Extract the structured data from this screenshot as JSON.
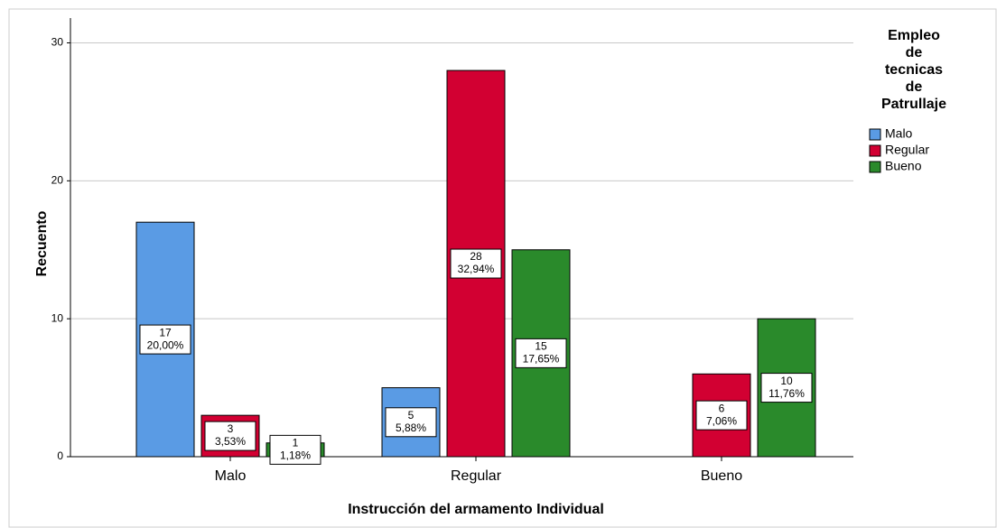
{
  "chart_data": {
    "type": "bar",
    "x_label": "Instrucción del armamento Individual",
    "y_label": "Recuento",
    "legend_title": "Empleo de tecnicas de Patrullaje",
    "legend_position": "right",
    "categories": [
      "Malo",
      "Regular",
      "Bueno"
    ],
    "series": [
      {
        "name": "Malo",
        "color": "#5a9be4",
        "values": [
          17,
          5,
          null
        ],
        "percent_labels": [
          "20,00%",
          "5,88%",
          null
        ]
      },
      {
        "name": "Regular",
        "color": "#d20032",
        "values": [
          3,
          28,
          6
        ],
        "percent_labels": [
          "3,53%",
          "32,94%",
          "7,06%"
        ]
      },
      {
        "name": "Bueno",
        "color": "#2a8a2b",
        "values": [
          1,
          15,
          10
        ],
        "percent_labels": [
          "1,18%",
          "17,65%",
          "11,76%"
        ]
      }
    ],
    "ylim": [
      0,
      31.8
    ],
    "yticks": [
      0,
      10,
      20,
      30
    ],
    "grid": true
  }
}
